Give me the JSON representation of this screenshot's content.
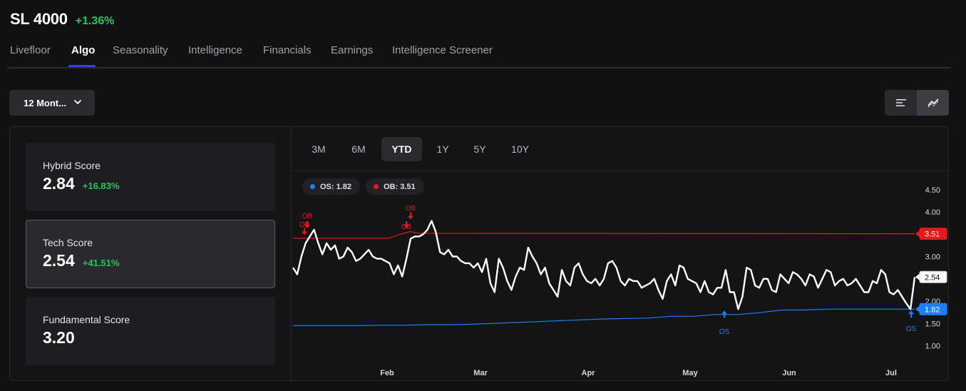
{
  "header": {
    "ticker": "SL 4000",
    "change": "+1.36%"
  },
  "tabs": [
    {
      "label": "Livefloor",
      "active": false
    },
    {
      "label": "Algo",
      "active": true
    },
    {
      "label": "Seasonality",
      "active": false
    },
    {
      "label": "Intelligence",
      "active": false
    },
    {
      "label": "Financials",
      "active": false
    },
    {
      "label": "Earnings",
      "active": false
    },
    {
      "label": "Intelligence Screener",
      "active": false
    }
  ],
  "period_select": {
    "value": "12 Mont..."
  },
  "view_toggle": {
    "options": [
      "list-icon",
      "chart-icon"
    ],
    "active": "chart-icon"
  },
  "scores": [
    {
      "title": "Hybrid Score",
      "value": "2.84",
      "change": "+16.83%",
      "selected": false
    },
    {
      "title": "Tech Score",
      "value": "2.54",
      "change": "+41.51%",
      "selected": true
    },
    {
      "title": "Fundamental Score",
      "value": "3.20",
      "change": "",
      "selected": false
    }
  ],
  "ranges": [
    {
      "label": "3M",
      "active": false
    },
    {
      "label": "6M",
      "active": false
    },
    {
      "label": "YTD",
      "active": true
    },
    {
      "label": "1Y",
      "active": false
    },
    {
      "label": "5Y",
      "active": false
    },
    {
      "label": "10Y",
      "active": false
    }
  ],
  "legend": {
    "os": "OS: 1.82",
    "ob": "OB: 3.51"
  },
  "colors": {
    "os": "#1e7ef5",
    "ob": "#e01b1b",
    "up": "#22c55e",
    "accent": "#3b3bf5"
  },
  "chart_data": {
    "type": "line",
    "y_ticks": [
      "4.50",
      "4.00",
      "3.00",
      "2.00",
      "1.50",
      "1.00"
    ],
    "x_ticks": [
      "Feb",
      "Mar",
      "Apr",
      "May",
      "Jun",
      "Jul"
    ],
    "ylim": [
      0.7,
      4.6
    ],
    "current_value_label": "2.54",
    "ob_label": "3.51",
    "os_label": "1.82",
    "marker_ob": "OB",
    "marker_os": "OS",
    "series": [
      {
        "role": "tech-score",
        "values": [
          2.75,
          2.6,
          3.0,
          3.3,
          3.45,
          3.6,
          3.3,
          3.05,
          3.3,
          3.15,
          3.25,
          2.95,
          3.0,
          3.2,
          3.1,
          2.9,
          2.95,
          3.05,
          3.15,
          3.0,
          2.95,
          2.95,
          2.9,
          2.85,
          2.6,
          2.8,
          2.55,
          2.95,
          3.4,
          3.45,
          3.45,
          3.5,
          3.6,
          3.8,
          3.55,
          3.1,
          3.05,
          3.15,
          3.0,
          3.0,
          2.9,
          2.85,
          2.85,
          2.75,
          2.85,
          2.65,
          2.95,
          2.4,
          2.2,
          2.95,
          2.75,
          2.45,
          2.25,
          2.55,
          2.75,
          2.7,
          3.2,
          3.0,
          2.85,
          2.6,
          2.75,
          2.4,
          2.25,
          2.1,
          2.7,
          2.45,
          2.35,
          2.75,
          2.85,
          2.6,
          2.45,
          2.4,
          2.5,
          2.35,
          2.5,
          2.85,
          2.9,
          2.75,
          2.45,
          2.35,
          2.5,
          2.45,
          2.45,
          2.3,
          2.35,
          2.4,
          2.5,
          2.25,
          2.05,
          2.45,
          2.6,
          2.35,
          2.8,
          2.75,
          2.5,
          2.45,
          2.4,
          2.2,
          2.45,
          2.2,
          2.15,
          2.3,
          2.3,
          2.7,
          2.2,
          2.2,
          1.82,
          2.1,
          2.75,
          2.7,
          2.35,
          2.3,
          2.5,
          2.5,
          2.25,
          2.2,
          2.6,
          2.5,
          2.4,
          2.65,
          2.6,
          2.5,
          2.35,
          2.6,
          2.55,
          2.3,
          2.5,
          2.7,
          2.65,
          2.35,
          2.45,
          2.5,
          2.35,
          2.4,
          2.5,
          2.35,
          2.2,
          2.2,
          2.45,
          2.4,
          2.7,
          2.6,
          2.2,
          2.15,
          2.25,
          2.1,
          1.95,
          1.82,
          2.54
        ]
      },
      {
        "role": "ob-level",
        "values": [
          3.41,
          3.41,
          3.41,
          3.41,
          3.41,
          3.41,
          3.41,
          3.41,
          3.41,
          3.41,
          3.41,
          3.41,
          3.41,
          3.41,
          3.41,
          3.41,
          3.41,
          3.41,
          3.41,
          3.41,
          3.41,
          3.41,
          3.41,
          3.41,
          3.41,
          3.41,
          3.41,
          3.41,
          3.41,
          3.41,
          3.41,
          3.41,
          3.49,
          3.56,
          3.52,
          3.51
        ]
      },
      {
        "role": "os-level",
        "values": [
          1.45,
          1.45,
          1.45,
          1.45,
          1.46,
          1.46,
          1.47,
          1.47,
          1.48,
          1.5,
          1.52,
          1.54,
          1.56,
          1.58,
          1.6,
          1.61,
          1.62,
          1.66,
          1.66,
          1.7,
          1.7,
          1.74,
          1.8,
          1.8,
          1.82,
          1.82,
          1.82,
          1.82,
          1.82
        ]
      }
    ]
  }
}
